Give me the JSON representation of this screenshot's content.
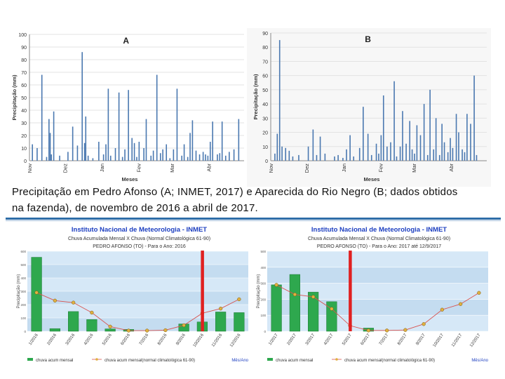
{
  "caption": {
    "line1": "Precipitação em Pedro Afonso (A; INMET, 2017) e Aparecida do Rio Negro (B; dados obtidos",
    "line2": "na fazenda), de novembro de 2016 a abril de 2017."
  },
  "colors": {
    "daily_bar": "#4a78b0",
    "monthly_bar": "#2ea84e",
    "normal_line": "#d9534f",
    "marker": "#e0b040",
    "highlight": "#e02020",
    "header_blue": "#1d3fc0",
    "plot_bg": "#cfe4f5",
    "rule": "#2e6da8"
  },
  "chart_data": [
    {
      "id": "A",
      "type": "bar",
      "title": "A",
      "xlabel": "Meses",
      "ylabel": "Precipitação (mm)",
      "ylim": [
        0,
        100
      ],
      "yticks": [
        "0",
        "10",
        "20",
        "30",
        "40",
        "50",
        "60",
        "70",
        "80",
        "90",
        "100"
      ],
      "xticks": [
        {
          "label": "Nov",
          "day": 0
        },
        {
          "label": "Dez",
          "day": 30
        },
        {
          "label": "Jan",
          "day": 61
        },
        {
          "label": "Fev",
          "day": 92
        },
        {
          "label": "Mar",
          "day": 120
        },
        {
          "label": "Abr",
          "day": 151
        }
      ],
      "n_days": 181,
      "daily": [
        [
          2,
          13
        ],
        [
          6,
          10
        ],
        [
          10,
          68
        ],
        [
          14,
          3
        ],
        [
          16,
          33
        ],
        [
          17,
          22
        ],
        [
          18,
          5
        ],
        [
          20,
          39
        ],
        [
          25,
          4
        ],
        [
          32,
          7
        ],
        [
          36,
          27
        ],
        [
          40,
          12
        ],
        [
          44,
          86
        ],
        [
          46,
          14
        ],
        [
          47,
          35
        ],
        [
          49,
          4
        ],
        [
          53,
          2
        ],
        [
          58,
          15
        ],
        [
          62,
          5
        ],
        [
          64,
          13
        ],
        [
          66,
          57
        ],
        [
          68,
          4
        ],
        [
          72,
          10
        ],
        [
          75,
          54
        ],
        [
          78,
          3
        ],
        [
          80,
          9
        ],
        [
          83,
          56
        ],
        [
          86,
          18
        ],
        [
          88,
          14
        ],
        [
          90,
          3
        ],
        [
          92,
          15
        ],
        [
          96,
          10
        ],
        [
          98,
          33
        ],
        [
          102,
          4
        ],
        [
          104,
          8
        ],
        [
          107,
          68
        ],
        [
          110,
          6
        ],
        [
          112,
          9
        ],
        [
          115,
          13
        ],
        [
          118,
          2
        ],
        [
          121,
          9
        ],
        [
          124,
          57
        ],
        [
          128,
          4
        ],
        [
          130,
          13
        ],
        [
          133,
          3
        ],
        [
          135,
          22
        ],
        [
          137,
          32
        ],
        [
          140,
          8
        ],
        [
          143,
          5
        ],
        [
          146,
          7
        ],
        [
          148,
          5
        ],
        [
          150,
          4
        ],
        [
          152,
          15
        ],
        [
          154,
          31
        ],
        [
          158,
          5
        ],
        [
          160,
          6
        ],
        [
          162,
          31
        ],
        [
          165,
          4
        ],
        [
          168,
          7
        ],
        [
          172,
          9
        ],
        [
          176,
          33
        ]
      ]
    },
    {
      "id": "B",
      "type": "bar",
      "title": "B",
      "xlabel": "Meses",
      "ylabel": "Precipitação (mm)",
      "ylim": [
        0,
        90
      ],
      "yticks": [
        "0",
        "10",
        "20",
        "30",
        "40",
        "50",
        "60",
        "70",
        "80",
        "90"
      ],
      "xticks": [
        {
          "label": "Nov",
          "day": 0
        },
        {
          "label": "Dez",
          "day": 30
        },
        {
          "label": "Jan",
          "day": 61
        },
        {
          "label": "Fev",
          "day": 92
        },
        {
          "label": "Mar",
          "day": 120
        },
        {
          "label": "Abr",
          "day": 151
        }
      ],
      "n_days": 181,
      "daily": [
        [
          3,
          5
        ],
        [
          5,
          19
        ],
        [
          7,
          85
        ],
        [
          9,
          10
        ],
        [
          12,
          9
        ],
        [
          15,
          7
        ],
        [
          18,
          3
        ],
        [
          23,
          4
        ],
        [
          31,
          10
        ],
        [
          35,
          22
        ],
        [
          38,
          4
        ],
        [
          41,
          17
        ],
        [
          45,
          5
        ],
        [
          53,
          3
        ],
        [
          56,
          4
        ],
        [
          60,
          2
        ],
        [
          63,
          8
        ],
        [
          66,
          18
        ],
        [
          69,
          3
        ],
        [
          74,
          9
        ],
        [
          77,
          38
        ],
        [
          81,
          19
        ],
        [
          84,
          4
        ],
        [
          88,
          12
        ],
        [
          90,
          5
        ],
        [
          92,
          18
        ],
        [
          94,
          46
        ],
        [
          97,
          10
        ],
        [
          100,
          13
        ],
        [
          103,
          56
        ],
        [
          105,
          3
        ],
        [
          108,
          10
        ],
        [
          110,
          35
        ],
        [
          113,
          12
        ],
        [
          116,
          28
        ],
        [
          118,
          8
        ],
        [
          120,
          5
        ],
        [
          122,
          25
        ],
        [
          125,
          18
        ],
        [
          128,
          40
        ],
        [
          131,
          4
        ],
        [
          133,
          50
        ],
        [
          136,
          8
        ],
        [
          138,
          30
        ],
        [
          141,
          4
        ],
        [
          143,
          26
        ],
        [
          145,
          13
        ],
        [
          148,
          6
        ],
        [
          150,
          16
        ],
        [
          152,
          9
        ],
        [
          155,
          33
        ],
        [
          157,
          20
        ],
        [
          160,
          8
        ],
        [
          162,
          6
        ],
        [
          164,
          33
        ],
        [
          167,
          26
        ],
        [
          170,
          60
        ],
        [
          172,
          4
        ]
      ]
    },
    {
      "id": "C",
      "type": "bar+line",
      "header": {
        "line1": "Instituto Nacional de Meteorologia - INMET",
        "line2": "Chuva Acumulada Mensal X Chuva (Normal Climatológica 61-90)",
        "line3": "PEDRO AFONSO (TO) - Para o Ano: 2016"
      },
      "ylabel": "Precipitação (mm)",
      "ylim": [
        0,
        600
      ],
      "yticks": [
        "0",
        "100",
        "200",
        "300",
        "400",
        "500",
        "600"
      ],
      "categories": [
        "1/2016",
        "2/2016",
        "3/2016",
        "4/2016",
        "5/2016",
        "6/2016",
        "7/2016",
        "8/2016",
        "9/2016",
        "10/2016",
        "11/2016",
        "12/2016"
      ],
      "series": [
        {
          "name": "chuva acum mensal",
          "kind": "bar",
          "values": [
            555,
            20,
            148,
            88,
            18,
            14,
            0,
            0,
            55,
            70,
            145,
            140
          ]
        },
        {
          "name": "chuva acum mensal(normal climatológica 61-90)",
          "kind": "line",
          "values": [
            290,
            230,
            215,
            140,
            35,
            5,
            5,
            8,
            45,
            135,
            170,
            240
          ]
        }
      ],
      "highlight_index": 9,
      "legend": {
        "bar": "chuva acum mensal",
        "line": "chuva acum mensal(normal climatológica 61-90)",
        "right": "Mês/Ano"
      }
    },
    {
      "id": "D",
      "type": "bar+line",
      "header": {
        "line1": "Instituto Nacional de Meteorologia - INMET",
        "line2": "Chuva Acumulada Mensal X Chuva (Normal Climatológica 61-90)",
        "line3": "PEDRO AFONSO (TO) - Para o Ano: 2017 até 12/9/2017"
      },
      "ylabel": "Precipitação (mm)",
      "ylim": [
        0,
        500
      ],
      "yticks": [
        "0",
        "100",
        "200",
        "300",
        "400",
        "500"
      ],
      "categories": [
        "1/2017",
        "2/2017",
        "3/2017",
        "4/2017",
        "5/2017",
        "6/2017",
        "7/2017",
        "8/2017",
        "9/2017",
        "10/2017",
        "11/2017",
        "12/2017"
      ],
      "series": [
        {
          "name": "chuva acum mensal",
          "kind": "bar",
          "values": [
            290,
            355,
            245,
            185,
            0,
            20,
            0,
            0,
            0,
            0,
            0,
            0
          ]
        },
        {
          "name": "chuva acum mensal(normal climatológica 61-90)",
          "kind": "line",
          "values": [
            290,
            230,
            215,
            140,
            35,
            5,
            5,
            8,
            45,
            135,
            170,
            240
          ]
        }
      ],
      "highlight_index": 4,
      "legend": {
        "bar": "chuva acum mensal",
        "line": "chuva acum mensal(normal climatológica 61-90)",
        "right": "Mês/Ano"
      }
    }
  ]
}
